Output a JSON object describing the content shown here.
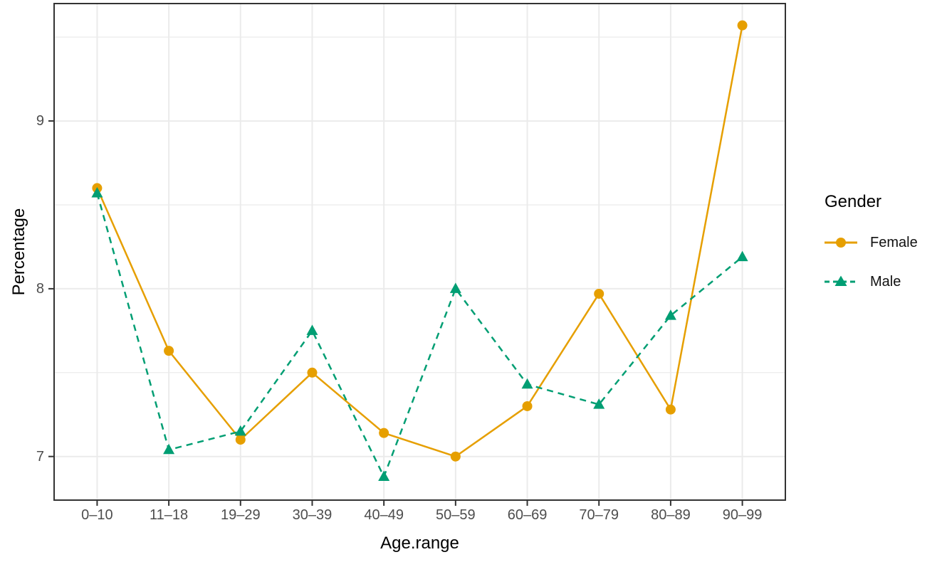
{
  "chart_data": {
    "type": "line",
    "title": "",
    "xlabel": "Age.range",
    "ylabel": "Percentage",
    "categories": [
      "0–10",
      "11–18",
      "19–29",
      "30–39",
      "40–49",
      "50–59",
      "60–69",
      "70–79",
      "80–89",
      "90–99"
    ],
    "y_ticks": [
      7,
      8,
      9
    ],
    "y_minor_gridlines": [
      7.5,
      8.5,
      9.5
    ],
    "ylim": [
      6.74,
      9.7
    ],
    "grid": true,
    "legend": {
      "title": "Gender",
      "position": "right"
    },
    "series": [
      {
        "name": "Female",
        "color": "#E69F00",
        "linestyle": "solid",
        "marker": "circle",
        "values": [
          8.6,
          7.63,
          7.1,
          7.5,
          7.14,
          7.0,
          7.3,
          7.97,
          7.28,
          9.57
        ]
      },
      {
        "name": "Male",
        "color": "#009E73",
        "linestyle": "dashed",
        "marker": "triangle",
        "values": [
          8.57,
          7.04,
          7.15,
          7.75,
          6.88,
          8.0,
          7.43,
          7.31,
          7.84,
          8.19
        ]
      }
    ]
  },
  "colors": {
    "grid": "#EBEBEB",
    "panel_border": "#333333",
    "tick_mark": "#333333",
    "tick_label": "#4D4D4D",
    "axis_title": "#000000",
    "background": "#FFFFFF"
  }
}
